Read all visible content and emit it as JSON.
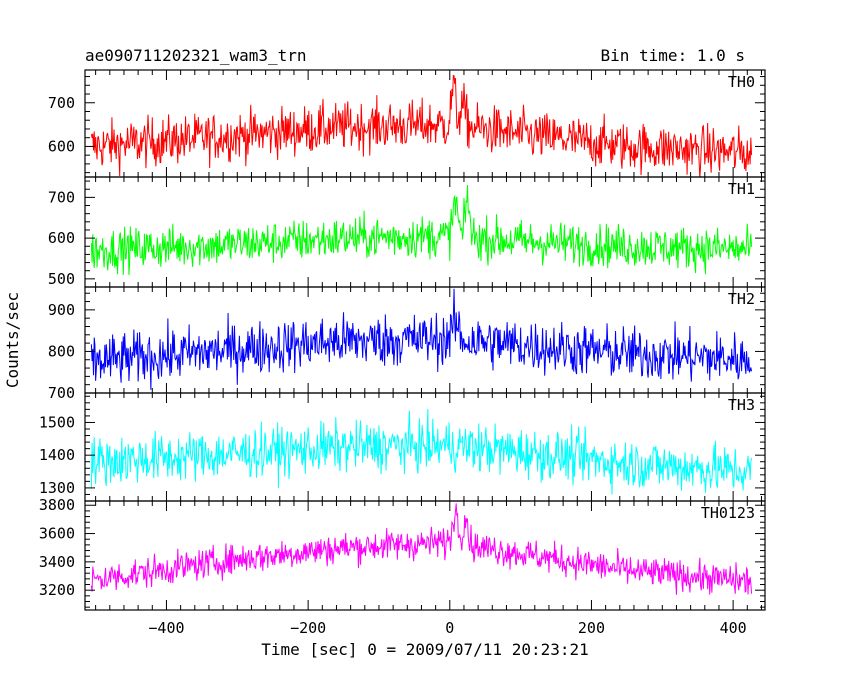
{
  "header": {
    "title": "ae090711202321_wam3_trn",
    "bin_time": "Bin time: 1.0 s"
  },
  "chart_data": {
    "type": "line",
    "xlabel": "Time [sec] 0 = 2009/07/11 20:23:21",
    "ylabel": "Counts/sec",
    "xlim": [
      -515,
      445
    ],
    "x_ticks": [
      -400,
      -200,
      0,
      200,
      400
    ],
    "x_tick_labels": [
      "−400",
      "−200",
      "0",
      "200",
      "400"
    ],
    "x_range_data": [
      -506,
      426
    ],
    "bin_time_s": 1.0,
    "panels": [
      {
        "name": "TH0",
        "color": "#ff0000",
        "ylim": [
          530,
          775
        ],
        "yticks": [
          600,
          700
        ],
        "ytick_labels": [
          "600",
          "700"
        ],
        "profile_points": [
          [
            -506,
            600
          ],
          [
            -300,
            625
          ],
          [
            -150,
            645
          ],
          [
            0,
            650
          ],
          [
            100,
            628
          ],
          [
            250,
            600
          ],
          [
            426,
            585
          ]
        ],
        "noise_sd": 28,
        "flare": [
          {
            "t": 5,
            "amp": 90,
            "width": 4
          },
          {
            "t": 18,
            "amp": 45,
            "width": 6
          }
        ]
      },
      {
        "name": "TH1",
        "color": "#00ff00",
        "ylim": [
          480,
          750
        ],
        "yticks": [
          500,
          600,
          700
        ],
        "ytick_labels": [
          "500",
          "600",
          "700"
        ],
        "profile_points": [
          [
            -506,
            570
          ],
          [
            -300,
            585
          ],
          [
            -150,
            600
          ],
          [
            0,
            605
          ],
          [
            100,
            592
          ],
          [
            250,
            580
          ],
          [
            426,
            572
          ]
        ],
        "noise_sd": 26,
        "flare": [
          {
            "t": 8,
            "amp": 85,
            "width": 5
          },
          {
            "t": 25,
            "amp": 100,
            "width": 4
          }
        ]
      },
      {
        "name": "TH2",
        "color": "#0000ff",
        "ylim": [
          700,
          955
        ],
        "yticks": [
          700,
          800,
          900
        ],
        "ytick_labels": [
          "700",
          "800",
          "900"
        ],
        "profile_points": [
          [
            -506,
            775
          ],
          [
            -300,
            805
          ],
          [
            -150,
            825
          ],
          [
            0,
            830
          ],
          [
            100,
            815
          ],
          [
            250,
            795
          ],
          [
            426,
            780
          ]
        ],
        "noise_sd": 32,
        "flare": [
          {
            "t": 8,
            "amp": 40,
            "width": 6
          }
        ]
      },
      {
        "name": "TH3",
        "color": "#00ffff",
        "ylim": [
          1260,
          1590
        ],
        "yticks": [
          1300,
          1400,
          1500
        ],
        "ytick_labels": [
          "1300",
          "1400",
          "1500"
        ],
        "profile_points": [
          [
            -506,
            1380
          ],
          [
            -300,
            1405
          ],
          [
            -150,
            1425
          ],
          [
            0,
            1430
          ],
          [
            100,
            1410
          ],
          [
            250,
            1375
          ],
          [
            426,
            1350
          ]
        ],
        "noise_sd": 38,
        "flare": []
      },
      {
        "name": "TH0123",
        "color": "#ff00ff",
        "ylim": [
          3060,
          3830
        ],
        "yticks": [
          3200,
          3400,
          3600,
          3800
        ],
        "ytick_labels": [
          "3200",
          "3400",
          "3600",
          "3800"
        ],
        "profile_points": [
          [
            -506,
            3270
          ],
          [
            -300,
            3420
          ],
          [
            -150,
            3500
          ],
          [
            0,
            3540
          ],
          [
            100,
            3460
          ],
          [
            250,
            3340
          ],
          [
            426,
            3260
          ]
        ],
        "noise_sd": 55,
        "flare": [
          {
            "t": 8,
            "amp": 230,
            "width": 5
          },
          {
            "t": 22,
            "amp": 200,
            "width": 5
          }
        ]
      }
    ]
  }
}
